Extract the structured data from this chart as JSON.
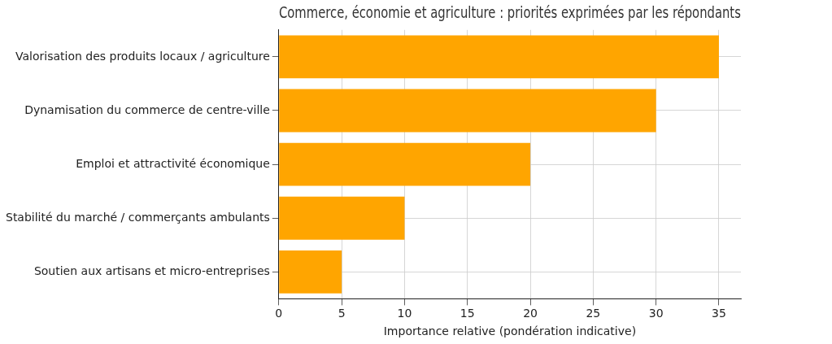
{
  "chart_data": {
    "type": "bar",
    "orientation": "horizontal",
    "title": "Commerce, économie et agriculture : priorités exprimées par les répondants",
    "xlabel": "Importance relative (pondération indicative)",
    "categories": [
      "Valorisation des produits locaux / agriculture",
      "Dynamisation du commerce de centre-ville",
      "Emploi et attractivité économique",
      "Stabilité du marché / commerçants ambulants",
      "Soutien aux artisans et micro-entreprises"
    ],
    "values": [
      35,
      30,
      20,
      10,
      5
    ],
    "color": "#ffa500",
    "xlim": [
      0,
      36.75
    ],
    "xticks": [
      0,
      5,
      10,
      15,
      20,
      25,
      30,
      35
    ],
    "grid": true,
    "legend": false
  }
}
